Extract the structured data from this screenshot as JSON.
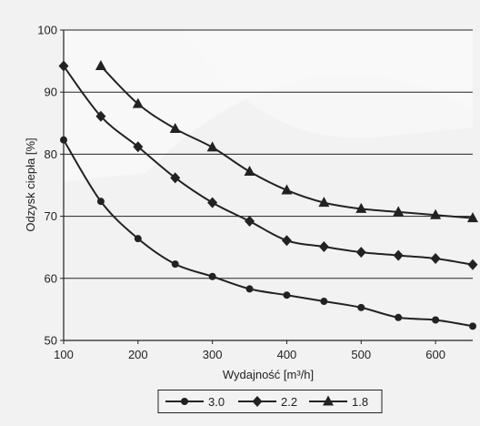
{
  "chart_data": {
    "type": "line",
    "xlabel": "Wydajność [m³/h]",
    "ylabel": "Odzysk ciepła [%]",
    "xlim": [
      100,
      650
    ],
    "ylim": [
      50,
      100
    ],
    "x_ticks": [
      100,
      200,
      300,
      400,
      500,
      600
    ],
    "y_ticks": [
      50,
      60,
      70,
      80,
      90,
      100
    ],
    "grid": "horizontal",
    "legend_position": "bottom",
    "series": [
      {
        "name": "3.0",
        "marker": "circle",
        "color": "#222222",
        "x": [
          100,
          150,
          200,
          250,
          300,
          350,
          400,
          450,
          500,
          550,
          600,
          650
        ],
        "y": [
          82.3,
          72.4,
          66.4,
          62.3,
          60.3,
          58.3,
          57.3,
          56.3,
          55.3,
          53.7,
          53.3,
          52.3
        ]
      },
      {
        "name": "2.2",
        "marker": "diamond",
        "color": "#222222",
        "x": [
          100,
          150,
          200,
          250,
          300,
          350,
          400,
          450,
          500,
          550,
          600,
          650
        ],
        "y": [
          94.2,
          86.1,
          81.2,
          76.2,
          72.2,
          69.2,
          66.1,
          65.1,
          64.2,
          63.7,
          63.2,
          62.2
        ]
      },
      {
        "name": "1.8",
        "marker": "triangle",
        "color": "#222222",
        "x": [
          150,
          200,
          250,
          300,
          350,
          400,
          450,
          500,
          550,
          600,
          650
        ],
        "y": [
          94.2,
          88.1,
          84.1,
          81.1,
          77.2,
          74.2,
          72.2,
          71.2,
          70.7,
          70.2,
          69.7
        ]
      }
    ]
  }
}
